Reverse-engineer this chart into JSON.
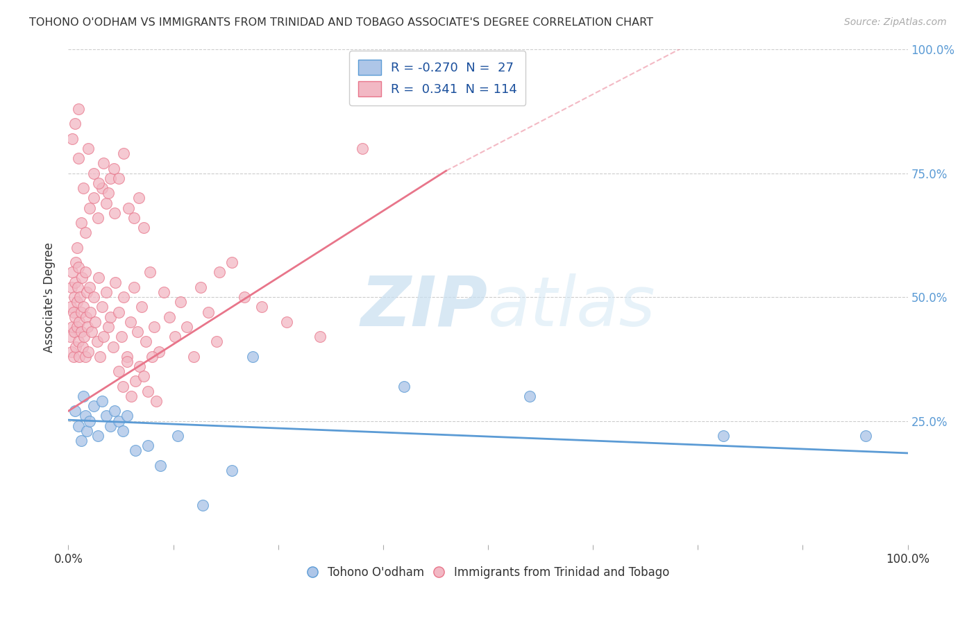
{
  "title": "TOHONO O'ODHAM VS IMMIGRANTS FROM TRINIDAD AND TOBAGO ASSOCIATE'S DEGREE CORRELATION CHART",
  "source": "Source: ZipAtlas.com",
  "ylabel": "Associate's Degree",
  "xlim": [
    0.0,
    1.0
  ],
  "ylim": [
    0.0,
    1.0
  ],
  "legend_entry_blue": "R = -0.270  N =  27",
  "legend_entry_pink": "R =  0.341  N = 114",
  "legend_label1": "Tohono O'odham",
  "legend_label2": "Immigrants from Trinidad and Tobago",
  "blue_color": "#5b9bd5",
  "pink_color": "#e8758a",
  "blue_light": "#aec6e8",
  "pink_light": "#f2b8c4",
  "watermark_zip": "ZIP",
  "watermark_atlas": "atlas",
  "blue_R": -0.27,
  "blue_N": 27,
  "pink_R": 0.341,
  "pink_N": 114,
  "blue_line": [
    0.0,
    0.252,
    1.0,
    0.185
  ],
  "pink_line_solid": [
    0.0,
    0.27,
    0.45,
    0.755
  ],
  "pink_line_dashed": [
    0.45,
    0.755,
    0.75,
    1.02
  ],
  "background_color": "#ffffff",
  "grid_color": "#cccccc",
  "blue_dots_x": [
    0.008,
    0.012,
    0.015,
    0.018,
    0.02,
    0.022,
    0.025,
    0.03,
    0.035,
    0.04,
    0.045,
    0.05,
    0.055,
    0.06,
    0.065,
    0.07,
    0.08,
    0.095,
    0.11,
    0.13,
    0.16,
    0.195,
    0.22,
    0.4,
    0.55,
    0.78,
    0.95
  ],
  "blue_dots_y": [
    0.27,
    0.24,
    0.21,
    0.3,
    0.26,
    0.23,
    0.25,
    0.28,
    0.22,
    0.29,
    0.26,
    0.24,
    0.27,
    0.25,
    0.23,
    0.26,
    0.19,
    0.2,
    0.16,
    0.22,
    0.08,
    0.15,
    0.38,
    0.32,
    0.3,
    0.22,
    0.22
  ],
  "pink_dots_x": [
    0.002,
    0.003,
    0.004,
    0.004,
    0.005,
    0.005,
    0.006,
    0.006,
    0.007,
    0.007,
    0.008,
    0.008,
    0.009,
    0.009,
    0.01,
    0.01,
    0.011,
    0.012,
    0.012,
    0.013,
    0.013,
    0.014,
    0.015,
    0.015,
    0.016,
    0.017,
    0.018,
    0.019,
    0.02,
    0.02,
    0.021,
    0.022,
    0.023,
    0.024,
    0.025,
    0.026,
    0.028,
    0.03,
    0.032,
    0.034,
    0.036,
    0.038,
    0.04,
    0.042,
    0.045,
    0.048,
    0.05,
    0.053,
    0.056,
    0.06,
    0.063,
    0.066,
    0.07,
    0.074,
    0.078,
    0.082,
    0.087,
    0.092,
    0.097,
    0.102,
    0.108,
    0.114,
    0.12,
    0.127,
    0.134,
    0.141,
    0.149,
    0.158,
    0.167,
    0.177,
    0.01,
    0.015,
    0.02,
    0.025,
    0.03,
    0.035,
    0.04,
    0.045,
    0.05,
    0.055,
    0.06,
    0.065,
    0.07,
    0.075,
    0.08,
    0.085,
    0.09,
    0.095,
    0.1,
    0.105,
    0.012,
    0.018,
    0.024,
    0.03,
    0.036,
    0.042,
    0.048,
    0.054,
    0.06,
    0.066,
    0.072,
    0.078,
    0.084,
    0.09,
    0.18,
    0.195,
    0.21,
    0.23,
    0.26,
    0.3,
    0.005,
    0.008,
    0.012,
    0.35
  ],
  "pink_dots_y": [
    0.42,
    0.48,
    0.39,
    0.52,
    0.44,
    0.55,
    0.47,
    0.38,
    0.5,
    0.43,
    0.46,
    0.53,
    0.4,
    0.57,
    0.44,
    0.49,
    0.52,
    0.41,
    0.56,
    0.45,
    0.38,
    0.5,
    0.43,
    0.47,
    0.54,
    0.4,
    0.48,
    0.42,
    0.55,
    0.38,
    0.46,
    0.51,
    0.44,
    0.39,
    0.52,
    0.47,
    0.43,
    0.5,
    0.45,
    0.41,
    0.54,
    0.38,
    0.48,
    0.42,
    0.51,
    0.44,
    0.46,
    0.4,
    0.53,
    0.47,
    0.42,
    0.5,
    0.38,
    0.45,
    0.52,
    0.43,
    0.48,
    0.41,
    0.55,
    0.44,
    0.39,
    0.51,
    0.46,
    0.42,
    0.49,
    0.44,
    0.38,
    0.52,
    0.47,
    0.41,
    0.6,
    0.65,
    0.63,
    0.68,
    0.7,
    0.66,
    0.72,
    0.69,
    0.74,
    0.67,
    0.35,
    0.32,
    0.37,
    0.3,
    0.33,
    0.36,
    0.34,
    0.31,
    0.38,
    0.29,
    0.78,
    0.72,
    0.8,
    0.75,
    0.73,
    0.77,
    0.71,
    0.76,
    0.74,
    0.79,
    0.68,
    0.66,
    0.7,
    0.64,
    0.55,
    0.57,
    0.5,
    0.48,
    0.45,
    0.42,
    0.82,
    0.85,
    0.88,
    0.8
  ]
}
